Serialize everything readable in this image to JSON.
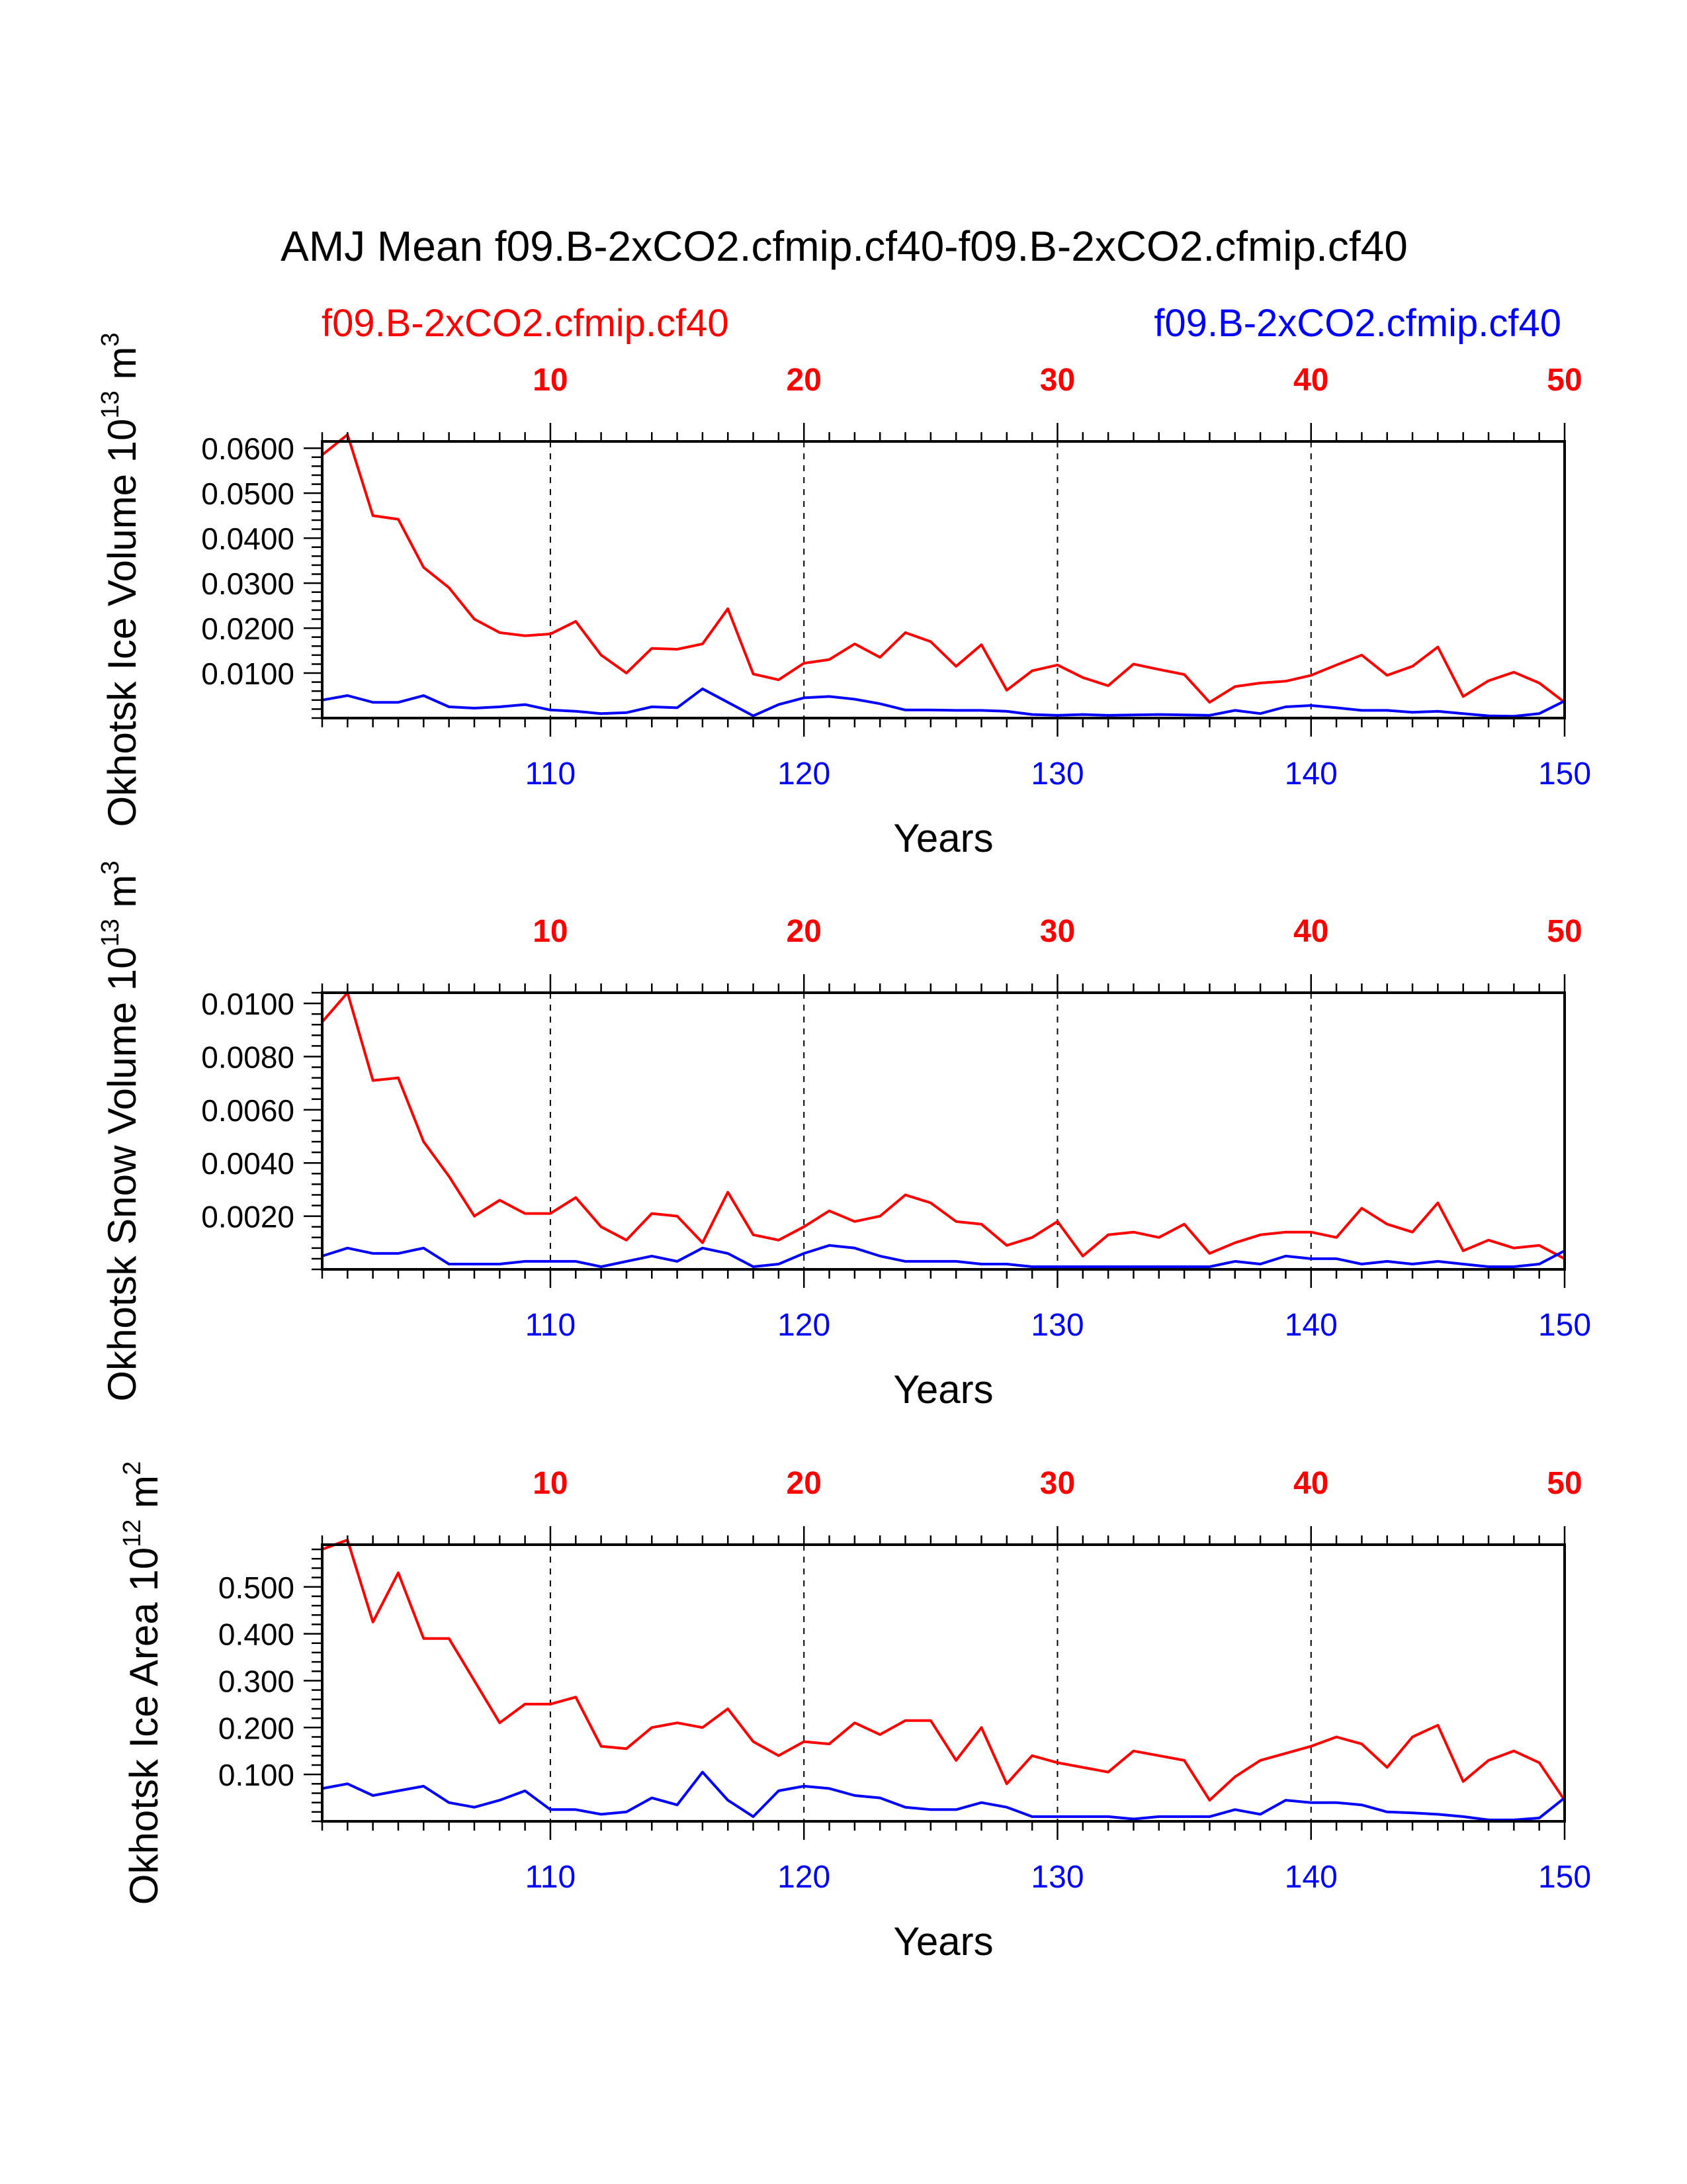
{
  "title": "AMJ Mean f09.B-2xCO2.cfmip.cf40-f09.B-2xCO2.cfmip.cf40",
  "legend": {
    "left": {
      "label": "f09.B-2xCO2.cfmip.cf40",
      "color": "#ff0000"
    },
    "right": {
      "label": "f09.B-2xCO2.cfmip.cf40",
      "color": "#0000ff"
    }
  },
  "colors": {
    "series_a": "#ff0000",
    "series_b": "#0000ff",
    "axis": "#000000"
  },
  "chart_data": [
    {
      "type": "line",
      "ylabel_main": "Okhotsk Ice Volume 10",
      "ylabel_exp": "13",
      "ylabel_unit": " m",
      "ylabel_unit_exp": "3",
      "xlabel": "Years",
      "ylim": [
        0.0,
        0.0615
      ],
      "yticks": [
        0.01,
        0.02,
        0.03,
        0.04,
        0.05,
        0.06
      ],
      "ytick_labels": [
        "0.0100",
        "0.0200",
        "0.0300",
        "0.0400",
        "0.0500",
        "0.0600"
      ],
      "top_axis": {
        "range": [
          1,
          50
        ],
        "ticks": [
          10,
          20,
          30,
          40,
          50
        ],
        "labels": [
          "10",
          "20",
          "30",
          "40",
          "50"
        ]
      },
      "bottom_axis": {
        "range": [
          101,
          150
        ],
        "ticks": [
          110,
          120,
          130,
          140,
          150
        ],
        "labels": [
          "110",
          "120",
          "130",
          "140",
          "150"
        ]
      },
      "series": [
        {
          "name": "f09.B-2xCO2.cfmip.cf40",
          "color": "#ff0000",
          "x": [
            1,
            2,
            3,
            4,
            5,
            6,
            7,
            8,
            9,
            10,
            11,
            12,
            13,
            14,
            15,
            16,
            17,
            18,
            19,
            20,
            21,
            22,
            23,
            24,
            25,
            26,
            27,
            28,
            29,
            30,
            31,
            32,
            33,
            34,
            35,
            36,
            37,
            38,
            39,
            40,
            41,
            42,
            43,
            44,
            45,
            46,
            47,
            48,
            49,
            50
          ],
          "values": [
            0.0585,
            0.063,
            0.045,
            0.0442,
            0.0335,
            0.029,
            0.022,
            0.019,
            0.0183,
            0.0187,
            0.0215,
            0.014,
            0.01,
            0.0155,
            0.0153,
            0.0165,
            0.0243,
            0.0098,
            0.0085,
            0.0122,
            0.013,
            0.0165,
            0.0135,
            0.019,
            0.017,
            0.0115,
            0.0163,
            0.0062,
            0.0105,
            0.0118,
            0.009,
            0.0072,
            0.012,
            0.0108,
            0.0097,
            0.0035,
            0.007,
            0.0078,
            0.0082,
            0.0095,
            0.0118,
            0.014,
            0.0095,
            0.0115,
            0.0158,
            0.0048,
            0.0083,
            0.0102,
            0.0078,
            0.0035
          ]
        },
        {
          "name": "f09.B-2xCO2.cfmip.cf40",
          "color": "#0000ff",
          "x": [
            1,
            2,
            3,
            4,
            5,
            6,
            7,
            8,
            9,
            10,
            11,
            12,
            13,
            14,
            15,
            16,
            17,
            18,
            19,
            20,
            21,
            22,
            23,
            24,
            25,
            26,
            27,
            28,
            29,
            30,
            31,
            32,
            33,
            34,
            35,
            36,
            37,
            38,
            39,
            40,
            41,
            42,
            43,
            44,
            45,
            46,
            47,
            48,
            49,
            50
          ],
          "values": [
            0.004,
            0.005,
            0.0035,
            0.0035,
            0.005,
            0.0025,
            0.0022,
            0.0025,
            0.003,
            0.0018,
            0.0015,
            0.001,
            0.0012,
            0.0025,
            0.0023,
            0.0065,
            0.0035,
            0.0005,
            0.003,
            0.0045,
            0.0048,
            0.0042,
            0.0032,
            0.0018,
            0.0018,
            0.0017,
            0.0017,
            0.0015,
            0.0008,
            0.0006,
            0.0008,
            0.0006,
            0.0007,
            0.0008,
            0.0007,
            0.0006,
            0.0017,
            0.001,
            0.0025,
            0.0028,
            0.0023,
            0.0017,
            0.0017,
            0.0013,
            0.0015,
            0.001,
            0.0005,
            0.0004,
            0.001,
            0.0038
          ]
        }
      ]
    },
    {
      "type": "line",
      "ylabel_main": "Okhotsk Snow Volume 10",
      "ylabel_exp": "13",
      "ylabel_unit": " m",
      "ylabel_unit_exp": "3",
      "xlabel": "Years",
      "ylim": [
        0.0,
        0.0104
      ],
      "yticks": [
        0.002,
        0.004,
        0.006,
        0.008,
        0.01
      ],
      "ytick_labels": [
        "0.0020",
        "0.0040",
        "0.0060",
        "0.0080",
        "0.0100"
      ],
      "top_axis": {
        "range": [
          1,
          50
        ],
        "ticks": [
          10,
          20,
          30,
          40,
          50
        ],
        "labels": [
          "10",
          "20",
          "30",
          "40",
          "50"
        ]
      },
      "bottom_axis": {
        "range": [
          101,
          150
        ],
        "ticks": [
          110,
          120,
          130,
          140,
          150
        ],
        "labels": [
          "110",
          "120",
          "130",
          "140",
          "150"
        ]
      },
      "series": [
        {
          "name": "f09.B-2xCO2.cfmip.cf40",
          "color": "#ff0000",
          "x": [
            1,
            2,
            3,
            4,
            5,
            6,
            7,
            8,
            9,
            10,
            11,
            12,
            13,
            14,
            15,
            16,
            17,
            18,
            19,
            20,
            21,
            22,
            23,
            24,
            25,
            26,
            27,
            28,
            29,
            30,
            31,
            32,
            33,
            34,
            35,
            36,
            37,
            38,
            39,
            40,
            41,
            42,
            43,
            44,
            45,
            46,
            47,
            48,
            49,
            50
          ],
          "values": [
            0.0093,
            0.0104,
            0.0071,
            0.0072,
            0.0048,
            0.0035,
            0.002,
            0.0026,
            0.0021,
            0.0021,
            0.0027,
            0.0016,
            0.0011,
            0.0021,
            0.002,
            0.001,
            0.0029,
            0.0013,
            0.0011,
            0.0016,
            0.0022,
            0.0018,
            0.002,
            0.0028,
            0.0025,
            0.0018,
            0.0017,
            0.0009,
            0.0012,
            0.0018,
            0.0005,
            0.0013,
            0.0014,
            0.0012,
            0.0017,
            0.0006,
            0.001,
            0.0013,
            0.0014,
            0.0014,
            0.0012,
            0.0023,
            0.0017,
            0.0014,
            0.0025,
            0.0007,
            0.0011,
            0.0008,
            0.0009,
            0.0004
          ]
        },
        {
          "name": "f09.B-2xCO2.cfmip.cf40",
          "color": "#0000ff",
          "x": [
            1,
            2,
            3,
            4,
            5,
            6,
            7,
            8,
            9,
            10,
            11,
            12,
            13,
            14,
            15,
            16,
            17,
            18,
            19,
            20,
            21,
            22,
            23,
            24,
            25,
            26,
            27,
            28,
            29,
            30,
            31,
            32,
            33,
            34,
            35,
            36,
            37,
            38,
            39,
            40,
            41,
            42,
            43,
            44,
            45,
            46,
            47,
            48,
            49,
            50
          ],
          "values": [
            0.0005,
            0.0008,
            0.0006,
            0.0006,
            0.0008,
            0.0002,
            0.0002,
            0.0002,
            0.0003,
            0.0003,
            0.0003,
            0.0001,
            0.0003,
            0.0005,
            0.0003,
            0.0008,
            0.0006,
            0.0001,
            0.0002,
            0.0006,
            0.0009,
            0.0008,
            0.0005,
            0.0003,
            0.0003,
            0.0003,
            0.0002,
            0.0002,
            0.0001,
            0.0001,
            0.0001,
            0.0001,
            0.0001,
            0.0001,
            0.0001,
            0.0001,
            0.0003,
            0.0002,
            0.0005,
            0.0004,
            0.0004,
            0.0002,
            0.0003,
            0.0002,
            0.0003,
            0.0002,
            0.0001,
            0.0001,
            0.0002,
            0.0007
          ]
        }
      ]
    },
    {
      "type": "line",
      "ylabel_main": "Okhotsk Ice Area 10",
      "ylabel_exp": "12",
      "ylabel_unit": " m",
      "ylabel_unit_exp": "2",
      "xlabel": "Years",
      "ylim": [
        0.0,
        0.59
      ],
      "yticks": [
        0.1,
        0.2,
        0.3,
        0.4,
        0.5
      ],
      "ytick_labels": [
        "0.100",
        "0.200",
        "0.300",
        "0.400",
        "0.500"
      ],
      "top_axis": {
        "range": [
          1,
          50
        ],
        "ticks": [
          10,
          20,
          30,
          40,
          50
        ],
        "labels": [
          "10",
          "20",
          "30",
          "40",
          "50"
        ]
      },
      "bottom_axis": {
        "range": [
          101,
          150
        ],
        "ticks": [
          110,
          120,
          130,
          140,
          150
        ],
        "labels": [
          "110",
          "120",
          "130",
          "140",
          "150"
        ]
      },
      "series": [
        {
          "name": "f09.B-2xCO2.cfmip.cf40",
          "color": "#ff0000",
          "x": [
            1,
            2,
            3,
            4,
            5,
            6,
            7,
            8,
            9,
            10,
            11,
            12,
            13,
            14,
            15,
            16,
            17,
            18,
            19,
            20,
            21,
            22,
            23,
            24,
            25,
            26,
            27,
            28,
            29,
            30,
            31,
            32,
            33,
            34,
            35,
            36,
            37,
            38,
            39,
            40,
            41,
            42,
            43,
            44,
            45,
            46,
            47,
            48,
            49,
            50
          ],
          "values": [
            0.58,
            0.6,
            0.425,
            0.53,
            0.39,
            0.39,
            0.3,
            0.21,
            0.25,
            0.25,
            0.265,
            0.16,
            0.155,
            0.2,
            0.21,
            0.2,
            0.24,
            0.17,
            0.14,
            0.17,
            0.165,
            0.21,
            0.185,
            0.215,
            0.215,
            0.13,
            0.2,
            0.08,
            0.14,
            0.125,
            0.115,
            0.105,
            0.15,
            0.14,
            0.13,
            0.045,
            0.095,
            0.13,
            0.145,
            0.16,
            0.18,
            0.165,
            0.115,
            0.18,
            0.205,
            0.085,
            0.13,
            0.15,
            0.125,
            0.045
          ]
        },
        {
          "name": "f09.B-2xCO2.cfmip.cf40",
          "color": "#0000ff",
          "x": [
            1,
            2,
            3,
            4,
            5,
            6,
            7,
            8,
            9,
            10,
            11,
            12,
            13,
            14,
            15,
            16,
            17,
            18,
            19,
            20,
            21,
            22,
            23,
            24,
            25,
            26,
            27,
            28,
            29,
            30,
            31,
            32,
            33,
            34,
            35,
            36,
            37,
            38,
            39,
            40,
            41,
            42,
            43,
            44,
            45,
            46,
            47,
            48,
            49,
            50
          ],
          "values": [
            0.07,
            0.08,
            0.055,
            0.065,
            0.075,
            0.04,
            0.03,
            0.045,
            0.065,
            0.025,
            0.025,
            0.015,
            0.02,
            0.05,
            0.035,
            0.105,
            0.045,
            0.01,
            0.065,
            0.075,
            0.07,
            0.055,
            0.05,
            0.03,
            0.025,
            0.025,
            0.04,
            0.03,
            0.01,
            0.01,
            0.01,
            0.01,
            0.005,
            0.01,
            0.01,
            0.01,
            0.025,
            0.015,
            0.045,
            0.04,
            0.04,
            0.035,
            0.02,
            0.018,
            0.015,
            0.01,
            0.003,
            0.003,
            0.007,
            0.05
          ]
        }
      ]
    }
  ]
}
